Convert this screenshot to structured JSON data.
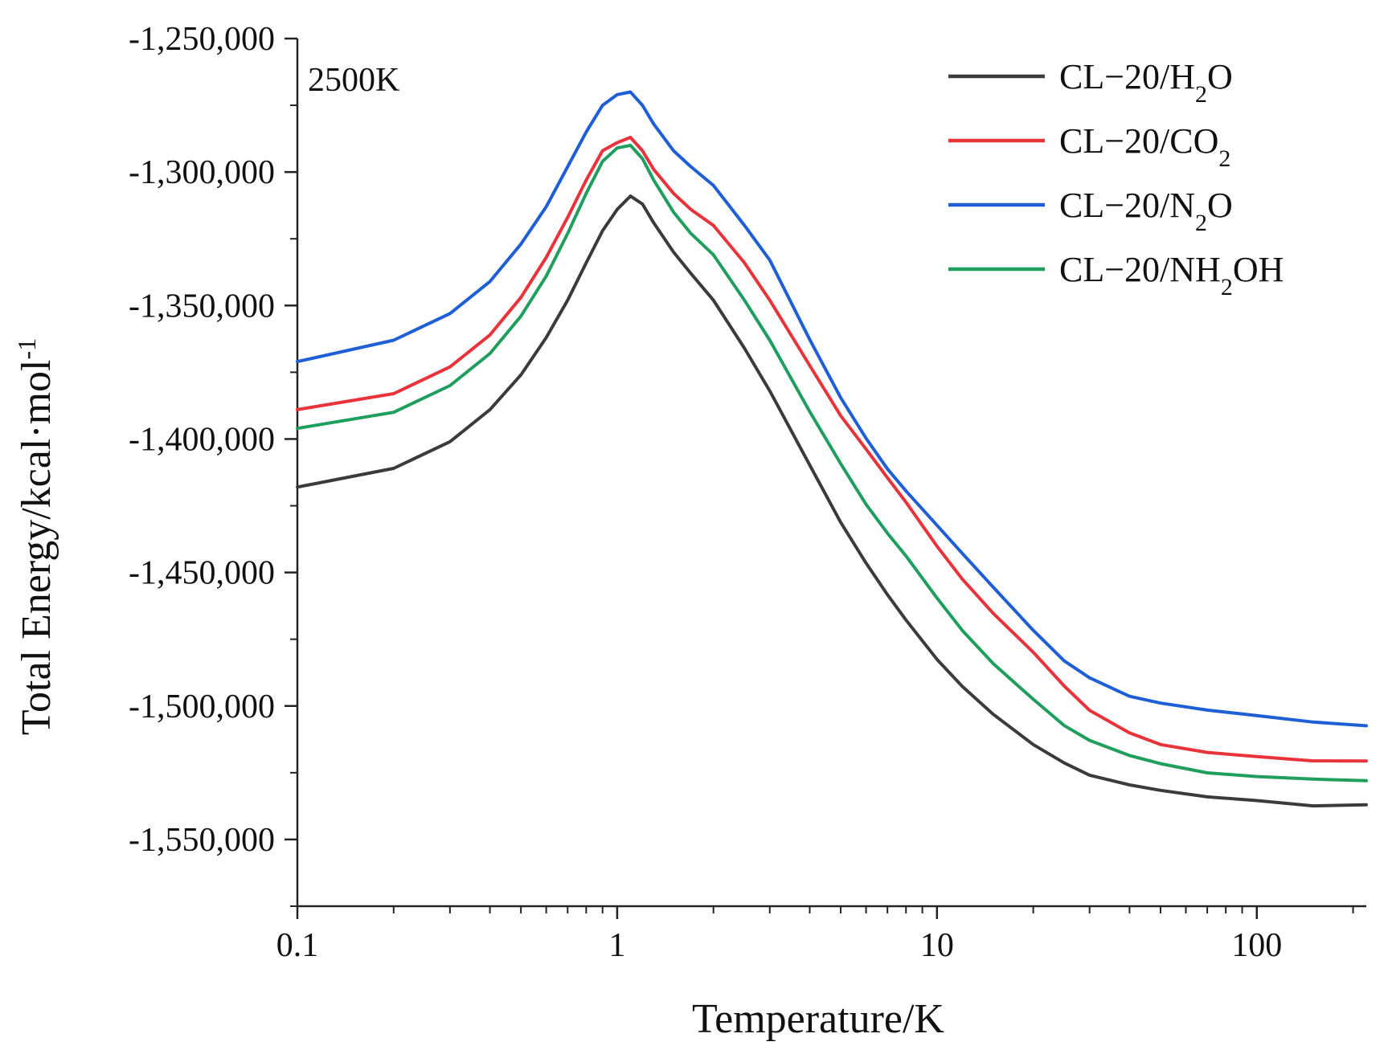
{
  "chart_data": {
    "type": "line",
    "title": "",
    "annotation": "2500K",
    "xlabel": "Temperature/K",
    "ylabel": {
      "main": "Total Energy/kcal·mol",
      "superscript": "-1"
    },
    "x_scale": "log",
    "xlim": [
      0.1,
      220
    ],
    "ylim": [
      -1575000,
      -1250000
    ],
    "x_ticks": [
      0.1,
      1,
      10,
      100
    ],
    "x_tick_labels": [
      "0.1",
      "1",
      "10",
      "100"
    ],
    "y_ticks": [
      -1250000,
      -1300000,
      -1350000,
      -1400000,
      -1450000,
      -1500000,
      -1550000
    ],
    "y_tick_labels": [
      "-1,250,000",
      "-1,300,000",
      "-1,350,000",
      "-1,400,000",
      "-1,450,000",
      "-1,500,000",
      "-1,550,000"
    ],
    "legend_position": "top-right",
    "grid": false,
    "x": [
      0.1,
      0.2,
      0.3,
      0.4,
      0.5,
      0.6,
      0.7,
      0.8,
      0.9,
      1.0,
      1.1,
      1.2,
      1.3,
      1.5,
      1.7,
      2.0,
      2.5,
      3.0,
      4.0,
      5.0,
      6.0,
      7.0,
      8.0,
      10.0,
      12.0,
      15.0,
      20.0,
      25.0,
      30.0,
      40.0,
      50.0,
      70.0,
      100.0,
      150.0,
      220.0
    ],
    "series": [
      {
        "name": "CL−20/H2O",
        "label_parts": [
          {
            "text": "CL−20/H"
          },
          {
            "text": "2",
            "sub": true
          },
          {
            "text": "O"
          }
        ],
        "color": "#3b3b3b",
        "values": [
          -1418000,
          -1411000,
          -1401000,
          -1389000,
          -1376000,
          -1362000,
          -1348000,
          -1334000,
          -1322000,
          -1314000,
          -1309000,
          -1312000,
          -1319000,
          -1330000,
          -1338000,
          -1348000,
          -1366000,
          -1382000,
          -1410000,
          -1431000,
          -1446000,
          -1458000,
          -1468000,
          -1483000,
          -1493000,
          -1503000,
          -1514000,
          -1521000,
          -1526000,
          -1530000,
          -1532000,
          -1534000,
          -1535000,
          -1537000,
          -1537000
        ]
      },
      {
        "name": "CL−20/CO2",
        "label_parts": [
          {
            "text": "CL−20/CO"
          },
          {
            "text": "2",
            "sub": true
          }
        ],
        "color": "#e8333a",
        "values": [
          -1389000,
          -1383000,
          -1373000,
          -1361000,
          -1347000,
          -1332000,
          -1317000,
          -1303000,
          -1292000,
          -1289000,
          -1287000,
          -1292000,
          -1299000,
          -1308000,
          -1314000,
          -1320000,
          -1334000,
          -1348000,
          -1372000,
          -1391000,
          -1404000,
          -1415000,
          -1424000,
          -1440000,
          -1452000,
          -1465000,
          -1480000,
          -1493000,
          -1502000,
          -1510000,
          -1514000,
          -1517000,
          -1519000,
          -1521000,
          -1521000
        ]
      },
      {
        "name": "CL−20/N2O",
        "label_parts": [
          {
            "text": "CL−20/N"
          },
          {
            "text": "2",
            "sub": true
          },
          {
            "text": "O"
          }
        ],
        "color": "#1f5fd6",
        "values": [
          -1371000,
          -1363000,
          -1353000,
          -1341000,
          -1327000,
          -1313000,
          -1298000,
          -1285000,
          -1275000,
          -1271000,
          -1270000,
          -1275000,
          -1282000,
          -1292000,
          -1298000,
          -1305000,
          -1320000,
          -1333000,
          -1363000,
          -1385000,
          -1400000,
          -1411000,
          -1419000,
          -1432000,
          -1443000,
          -1456000,
          -1472000,
          -1483000,
          -1489000,
          -1496000,
          -1499000,
          -1502000,
          -1504000,
          -1506000,
          -1507000
        ]
      },
      {
        "name": "CL−20/NH2OH",
        "label_parts": [
          {
            "text": "CL−20/NH"
          },
          {
            "text": "2",
            "sub": true
          },
          {
            "text": "OH"
          }
        ],
        "color": "#1f9e5e",
        "values": [
          -1396000,
          -1390000,
          -1380000,
          -1368000,
          -1354000,
          -1339000,
          -1323000,
          -1308000,
          -1296000,
          -1291000,
          -1290000,
          -1295000,
          -1303000,
          -1315000,
          -1323000,
          -1331000,
          -1348000,
          -1363000,
          -1390000,
          -1409000,
          -1424000,
          -1435000,
          -1444000,
          -1460000,
          -1472000,
          -1484000,
          -1497000,
          -1507000,
          -1513000,
          -1519000,
          -1522000,
          -1525000,
          -1526000,
          -1527000,
          -1528000
        ]
      }
    ]
  }
}
